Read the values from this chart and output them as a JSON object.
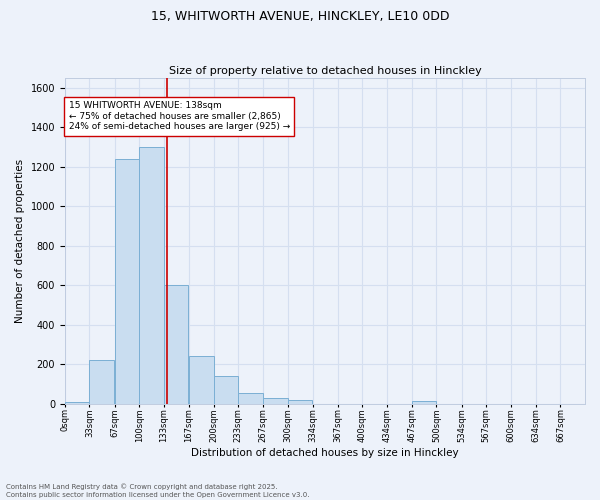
{
  "title": "15, WHITWORTH AVENUE, HINCKLEY, LE10 0DD",
  "subtitle": "Size of property relative to detached houses in Hinckley",
  "xlabel": "Distribution of detached houses by size in Hinckley",
  "ylabel": "Number of detached properties",
  "bar_left_edges": [
    0,
    33,
    67,
    100,
    133,
    167,
    200,
    233,
    267,
    300,
    334,
    367,
    400,
    434,
    467,
    500,
    534,
    567,
    600,
    634
  ],
  "bar_heights": [
    10,
    220,
    1240,
    1300,
    600,
    240,
    140,
    55,
    30,
    20,
    0,
    0,
    0,
    0,
    15,
    0,
    0,
    0,
    0,
    0
  ],
  "bin_width": 33,
  "bar_color": "#c9ddf0",
  "bar_edge_color": "#7bafd4",
  "grid_color": "#d5dff0",
  "background_color": "#edf2fa",
  "vline_x": 138,
  "vline_color": "#cc0000",
  "annotation_text_line1": "15 WHITWORTH AVENUE: 138sqm",
  "annotation_text_line2": "← 75% of detached houses are smaller (2,865)",
  "annotation_text_line3": "24% of semi-detached houses are larger (925) →",
  "ylim": [
    0,
    1650
  ],
  "yticks": [
    0,
    200,
    400,
    600,
    800,
    1000,
    1200,
    1400,
    1600
  ],
  "tick_labels": [
    "0sqm",
    "33sqm",
    "67sqm",
    "100sqm",
    "133sqm",
    "167sqm",
    "200sqm",
    "233sqm",
    "267sqm",
    "300sqm",
    "334sqm",
    "367sqm",
    "400sqm",
    "434sqm",
    "467sqm",
    "500sqm",
    "534sqm",
    "567sqm",
    "600sqm",
    "634sqm",
    "667sqm"
  ],
  "footer_line1": "Contains HM Land Registry data © Crown copyright and database right 2025.",
  "footer_line2": "Contains public sector information licensed under the Open Government Licence v3.0."
}
